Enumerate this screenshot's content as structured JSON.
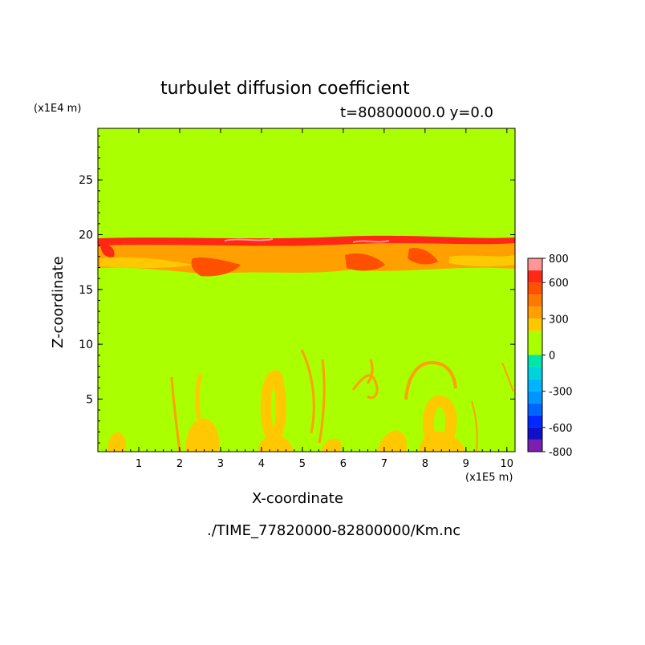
{
  "chart_data": {
    "type": "heatmap",
    "title": "turbulet diffusion coefficient",
    "subtitle": "t=80800000.0 y=0.0",
    "xlabel": "X-coordinate",
    "ylabel": "Z-coordinate",
    "x_unit": "(x1E5 m)",
    "y_unit": "(x1E4 m)",
    "xlim": [
      0,
      10.2
    ],
    "ylim": [
      0.2,
      29.7
    ],
    "x_ticks": [
      1,
      2,
      3,
      4,
      5,
      6,
      7,
      8,
      9,
      10
    ],
    "y_ticks": [
      5,
      10,
      15,
      20,
      25
    ],
    "background_value": 0,
    "colorbar": {
      "labels": [
        "800",
        "600",
        "300",
        "0",
        "-300",
        "-600",
        "-800"
      ],
      "label_values": [
        800,
        600,
        300,
        0,
        -300,
        -600,
        -800
      ],
      "levels": [
        {
          "from": -800,
          "to": -700,
          "color": "#7a1fb0"
        },
        {
          "from": -700,
          "to": -600,
          "color": "#1010c8"
        },
        {
          "from": -600,
          "to": -500,
          "color": "#0028ff"
        },
        {
          "from": -500,
          "to": -400,
          "color": "#0064ff"
        },
        {
          "from": -400,
          "to": -300,
          "color": "#0096ff"
        },
        {
          "from": -300,
          "to": -200,
          "color": "#00b4ff"
        },
        {
          "from": -200,
          "to": -100,
          "color": "#00d2dc"
        },
        {
          "from": -100,
          "to": 0,
          "color": "#00e6aa"
        },
        {
          "from": 0,
          "to": 100,
          "color": "#aaff00"
        },
        {
          "from": 100,
          "to": 200,
          "color": "#aaff00"
        },
        {
          "from": 200,
          "to": 300,
          "color": "#ffc800"
        },
        {
          "from": 300,
          "to": 400,
          "color": "#ffa000"
        },
        {
          "from": 400,
          "to": 500,
          "color": "#ff7800"
        },
        {
          "from": 500,
          "to": 600,
          "color": "#ff5000"
        },
        {
          "from": 600,
          "to": 700,
          "color": "#ff2814"
        },
        {
          "from": 700,
          "to": 800,
          "color": "#ff9696"
        }
      ]
    }
  },
  "footer": "./TIME_77820000-82800000/Km.nc"
}
